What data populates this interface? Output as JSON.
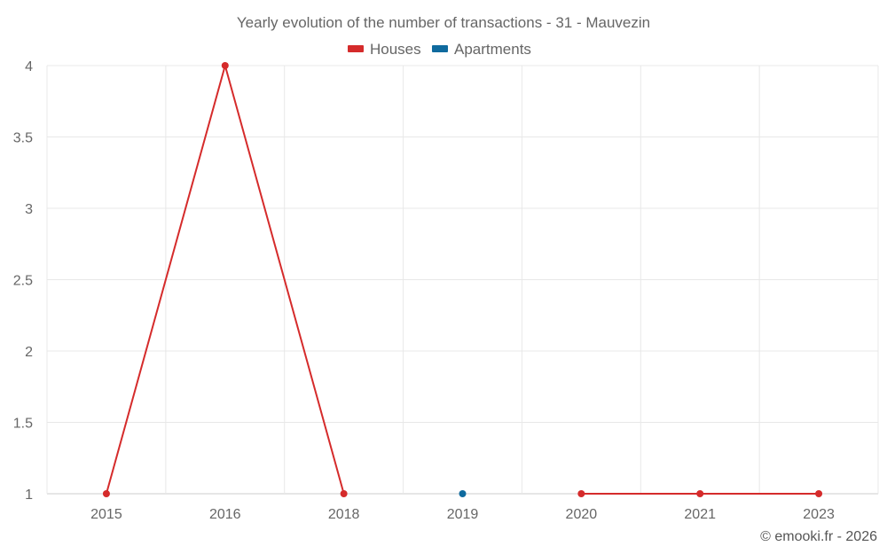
{
  "chart_data": {
    "type": "line",
    "title": "Yearly evolution of the number of transactions - 31 - Mauvezin",
    "categories": [
      "2015",
      "2016",
      "2018",
      "2019",
      "2020",
      "2021",
      "2023"
    ],
    "series": [
      {
        "name": "Houses",
        "color": "#d52b2b",
        "values": [
          1,
          4,
          1,
          null,
          1,
          1,
          1
        ]
      },
      {
        "name": "Apartments",
        "color": "#0f6a9e",
        "values": [
          null,
          null,
          null,
          1,
          null,
          null,
          null
        ]
      }
    ],
    "yticks": [
      "1",
      "1.5",
      "2",
      "2.5",
      "3",
      "3.5",
      "4"
    ],
    "ylim": [
      1,
      4
    ],
    "grid": true,
    "legend_position": "top-center"
  },
  "credit": "© emooki.fr - 2026"
}
